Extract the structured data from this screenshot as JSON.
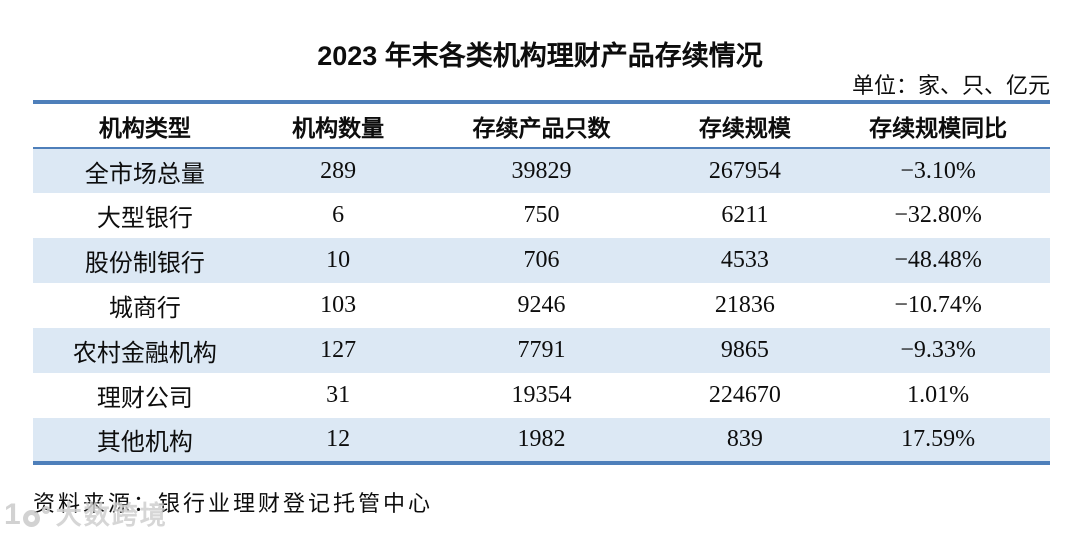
{
  "title": "2023 年末各类机构理财产品存续情况",
  "unit_note": "单位：家、只、亿元",
  "source_note": "资料来源：银行业理财登记托管中心",
  "watermark_text": "大数跨境",
  "colors": {
    "accent_line": "#4e7fba",
    "row_stripe": "#dce8f4",
    "text": "#0d0d0d",
    "watermark_gray": "#cbcbcb"
  },
  "chart_data": {
    "type": "table",
    "title": "2023 年末各类机构理财产品存续情况",
    "unit": "单位：家、只、亿元",
    "columns": [
      "机构类型",
      "机构数量",
      "存续产品只数",
      "存续规模",
      "存续规模同比"
    ],
    "rows": [
      [
        "全市场总量",
        "289",
        "39829",
        "267954",
        "−3.10%"
      ],
      [
        "大型银行",
        "6",
        "750",
        "6211",
        "−32.80%"
      ],
      [
        "股份制银行",
        "10",
        "706",
        "4533",
        "−48.48%"
      ],
      [
        "城商行",
        "103",
        "9246",
        "21836",
        "−10.74%"
      ],
      [
        "农村金融机构",
        "127",
        "7791",
        "9865",
        "−9.33%"
      ],
      [
        "理财公司",
        "31",
        "19354",
        "224670",
        "1.01%"
      ],
      [
        "其他机构",
        "12",
        "1982",
        "839",
        "17.59%"
      ]
    ],
    "source": "资料来源：银行业理财登记托管中心",
    "layout": {
      "striped": true,
      "stripe_pattern": "odd-rows-blue",
      "grid": "horizontal-rules-only"
    }
  }
}
